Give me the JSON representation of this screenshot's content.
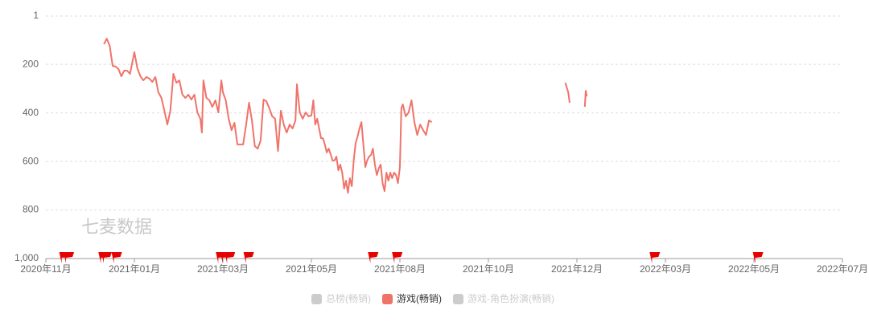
{
  "chart_data": {
    "type": "line",
    "watermark": "七麦数据",
    "inverted_y": true,
    "grid": true,
    "ylim": [
      1,
      1000
    ],
    "yticks": [
      1,
      200,
      400,
      600,
      800,
      {
        "value": 1000,
        "label": "1,000"
      }
    ],
    "xticks": [
      {
        "value": "2020-11-01",
        "label": "2020年11月"
      },
      {
        "value": "2021-01-01",
        "label": "2021年01月"
      },
      {
        "value": "2021-03-01",
        "label": "2021年03月"
      },
      {
        "value": "2021-05-01",
        "label": "2021年05月"
      },
      {
        "value": "2021-08-01",
        "label": "2021年08月"
      },
      {
        "value": "2021-10-01",
        "label": "2021年10月"
      },
      {
        "value": "2021-12-01",
        "label": "2021年12月"
      },
      {
        "value": "2022-03-01",
        "label": "2022年03月"
      },
      {
        "value": "2022-05-01",
        "label": "2022年05月"
      },
      {
        "value": "2022-07-01",
        "label": "2022年07月"
      }
    ],
    "x": [
      "2020-12-11",
      "2020-12-13",
      "2020-12-15",
      "2020-12-17",
      "2020-12-19",
      "2020-12-21",
      "2020-12-23",
      "2020-12-25",
      "2020-12-27",
      "2020-12-29",
      "2021-01-01",
      "2021-01-03",
      "2021-01-05",
      "2021-01-07",
      "2021-01-09",
      "2021-01-11",
      "2021-01-13",
      "2021-01-15",
      "2021-01-17",
      "2021-01-19",
      "2021-01-21",
      "2021-01-23",
      "2021-01-25",
      "2021-01-27",
      "2021-01-29",
      "2021-01-31",
      "2021-02-02",
      "2021-02-04",
      "2021-02-06",
      "2021-02-08",
      "2021-02-10",
      "2021-02-12",
      "2021-02-14",
      "2021-02-15",
      "2021-02-16",
      "2021-02-18",
      "2021-02-20",
      "2021-02-22",
      "2021-02-24",
      "2021-02-26",
      "2021-02-28",
      "2021-03-01",
      "2021-03-03",
      "2021-03-05",
      "2021-03-07",
      "2021-03-09",
      "2021-03-11",
      "2021-03-13",
      "2021-03-15",
      "2021-03-17",
      "2021-03-19",
      "2021-03-21",
      "2021-03-23",
      "2021-03-25",
      "2021-03-27",
      "2021-03-29",
      "2021-03-31",
      "2021-04-02",
      "2021-04-04",
      "2021-04-06",
      "2021-04-08",
      "2021-04-10",
      "2021-04-12",
      "2021-04-14",
      "2021-04-16",
      "2021-04-18",
      "2021-04-20",
      "2021-04-21",
      "2021-04-23",
      "2021-04-25",
      "2021-04-27",
      "2021-04-29",
      "2021-05-01",
      "2021-05-03",
      "2021-05-05",
      "2021-05-07",
      "2021-05-09",
      "2021-05-11",
      "2021-05-13",
      "2021-05-15",
      "2021-05-17",
      "2021-05-19",
      "2021-05-21",
      "2021-05-23",
      "2021-05-25",
      "2021-05-27",
      "2021-05-29",
      "2021-05-31",
      "2021-06-02",
      "2021-06-04",
      "2021-06-06",
      "2021-06-08",
      "2021-06-10",
      "2021-06-12",
      "2021-06-14",
      "2021-06-16",
      "2021-06-18",
      "2021-06-20",
      "2021-06-22",
      "2021-06-24",
      "2021-06-26",
      "2021-06-28",
      "2021-06-30",
      "2021-07-02",
      "2021-07-04",
      "2021-07-06",
      "2021-07-08",
      "2021-07-10",
      "2021-07-12",
      "2021-07-14",
      "2021-07-16",
      "2021-07-18",
      "2021-07-20",
      "2021-07-22",
      "2021-07-24",
      "2021-07-26",
      "2021-07-28",
      "2021-07-30",
      "2021-08-01",
      "2021-08-02",
      "2021-08-03",
      "2021-08-05",
      "2021-08-07",
      "2021-08-09",
      "2021-08-11",
      "2021-08-13",
      "2021-08-15",
      "2021-08-17",
      "2021-08-19",
      "2021-08-21",
      "2021-08-23",
      "2021-09-01",
      "2021-11-23",
      "2021-11-25",
      "2021-11-26",
      "2021-12-01",
      "2021-12-09",
      "2021-12-10",
      "2021-12-11"
    ],
    "series": [
      {
        "name": "游戏(畅销)",
        "color": "#f0736a",
        "values": [
          117,
          94,
          123,
          206,
          209,
          219,
          249,
          226,
          226,
          239,
          150,
          216,
          249,
          266,
          252,
          259,
          272,
          252,
          315,
          338,
          391,
          448,
          391,
          239,
          276,
          266,
          325,
          338,
          325,
          345,
          325,
          398,
          424,
          481,
          266,
          338,
          348,
          375,
          348,
          398,
          266,
          315,
          348,
          424,
          471,
          441,
          530,
          530,
          530,
          448,
          358,
          431,
          537,
          547,
          514,
          345,
          352,
          381,
          414,
          424,
          557,
          391,
          448,
          481,
          448,
          464,
          431,
          282,
          398,
          424,
          398,
          414,
          411,
          348,
          448,
          424,
          464,
          504,
          504,
          530,
          563,
          547,
          570,
          596,
          596,
          580,
          636,
          613,
          646,
          712,
          679,
          729,
          669,
          702,
          596,
          524,
          497,
          464,
          438,
          530,
          623,
          596,
          580,
          573,
          547,
          613,
          656,
          629,
          613,
          689,
          722,
          646,
          679,
          646,
          669,
          646,
          656,
          689,
          623,
          381,
          365,
          414,
          398,
          348,
          438,
          491,
          448,
          471,
          491,
          431,
          438,
          null,
          276,
          315,
          358,
          null,
          375,
          309,
          332
        ]
      }
    ],
    "inactive_series": [
      {
        "name": "总榜(畅销)",
        "color": "#cccccc"
      },
      {
        "name": "游戏-角色扮演(畅销)",
        "color": "#cccccc"
      }
    ],
    "events": {
      "color": "#e60000",
      "x": [
        "2020-11-13",
        "2020-11-16",
        "2020-12-10",
        "2020-12-12",
        "2020-12-19",
        "2021-02-27",
        "2021-03-02",
        "2021-03-05",
        "2021-03-18",
        "2021-07-03",
        "2021-07-28",
        "2022-02-17",
        "2022-05-03"
      ]
    }
  }
}
